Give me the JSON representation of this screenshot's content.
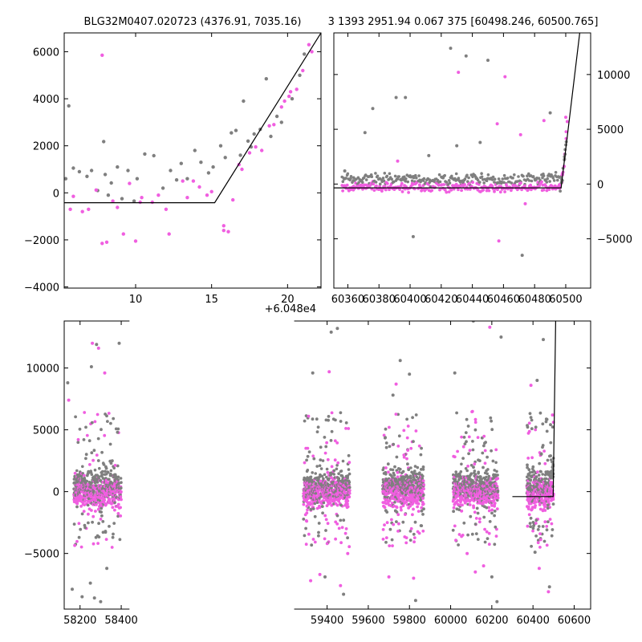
{
  "figure": {
    "title_left": "BLG32M0407.020723 (4376.91, 7035.16)",
    "title_right": "3 1393 2951.94 0.067 375 [60498.246, 60500.765]",
    "offset_label": "+6.048e4"
  },
  "colors": {
    "series_a": "#7f7f7f",
    "series_b": "#f05ee0",
    "model": "#000000"
  },
  "chart_data": [
    {
      "id": "zoom",
      "type": "scatter",
      "title": "",
      "x_offset": 60480,
      "xlim": [
        5.3,
        22.2
      ],
      "ylim": [
        -4050,
        6800
      ],
      "xticks": [
        10,
        15,
        20
      ],
      "yticks": [
        -4000,
        -2000,
        0,
        2000,
        4000,
        6000
      ],
      "ytick_side": "left",
      "model_line": [
        [
          5.3,
          -420
        ],
        [
          15.2,
          -420
        ],
        [
          22.2,
          6800
        ]
      ],
      "series": [
        {
          "color": "#7f7f7f",
          "points": [
            [
              5.4,
              600
            ],
            [
              5.6,
              3700
            ],
            [
              5.9,
              1050
            ],
            [
              6.3,
              900
            ],
            [
              6.8,
              700
            ],
            [
              7.1,
              950
            ],
            [
              7.5,
              100
            ],
            [
              7.9,
              2180
            ],
            [
              8.0,
              780
            ],
            [
              8.4,
              420
            ],
            [
              8.8,
              1100
            ],
            [
              9.1,
              -250
            ],
            [
              9.5,
              950
            ],
            [
              10.1,
              600
            ],
            [
              10.6,
              1650
            ],
            [
              11.2,
              1580
            ],
            [
              11.8,
              200
            ],
            [
              12.3,
              950
            ],
            [
              13.0,
              1250
            ],
            [
              13.4,
              600
            ],
            [
              13.9,
              1800
            ],
            [
              14.3,
              1300
            ],
            [
              14.8,
              850
            ],
            [
              15.1,
              1100
            ],
            [
              15.6,
              2000
            ],
            [
              15.9,
              1500
            ],
            [
              16.3,
              2550
            ],
            [
              16.6,
              2650
            ],
            [
              16.9,
              1600
            ],
            [
              17.1,
              3900
            ],
            [
              17.4,
              2200
            ],
            [
              17.6,
              1950
            ],
            [
              17.8,
              2500
            ],
            [
              18.2,
              2700
            ],
            [
              18.6,
              4850
            ],
            [
              18.9,
              2400
            ],
            [
              19.3,
              3250
            ],
            [
              19.6,
              3000
            ],
            [
              20.3,
              4000
            ],
            [
              20.8,
              5000
            ],
            [
              21.1,
              5900
            ],
            [
              9.9,
              -350
            ],
            [
              12.7,
              550
            ],
            [
              8.2,
              -100
            ]
          ]
        },
        {
          "color": "#f05ee0",
          "points": [
            [
              5.7,
              -700
            ],
            [
              5.9,
              -150
            ],
            [
              6.5,
              -800
            ],
            [
              6.9,
              -700
            ],
            [
              7.4,
              120
            ],
            [
              7.8,
              5850
            ],
            [
              7.8,
              -2150
            ],
            [
              8.1,
              -2100
            ],
            [
              8.5,
              -350
            ],
            [
              8.8,
              -620
            ],
            [
              9.2,
              -1750
            ],
            [
              9.6,
              400
            ],
            [
              10.0,
              -2050
            ],
            [
              10.4,
              -200
            ],
            [
              11.1,
              -400
            ],
            [
              11.5,
              -100
            ],
            [
              12.0,
              -700
            ],
            [
              12.2,
              -1750
            ],
            [
              13.1,
              500
            ],
            [
              13.8,
              500
            ],
            [
              14.2,
              250
            ],
            [
              14.7,
              -100
            ],
            [
              15.0,
              50
            ],
            [
              15.8,
              -1400
            ],
            [
              15.8,
              -1600
            ],
            [
              16.1,
              -1650
            ],
            [
              16.4,
              -300
            ],
            [
              16.8,
              1200
            ],
            [
              17.0,
              1000
            ],
            [
              17.5,
              1700
            ],
            [
              17.9,
              1950
            ],
            [
              18.3,
              1800
            ],
            [
              18.8,
              2850
            ],
            [
              19.1,
              2900
            ],
            [
              19.6,
              3650
            ],
            [
              20.1,
              4100
            ],
            [
              20.6,
              4400
            ],
            [
              21.0,
              5200
            ],
            [
              21.4,
              6300
            ],
            [
              21.6,
              6000
            ],
            [
              20.2,
              4300
            ],
            [
              19.8,
              3900
            ],
            [
              10.3,
              -400
            ],
            [
              13.4,
              -200
            ]
          ]
        }
      ]
    },
    {
      "id": "season",
      "type": "scatter",
      "title": "",
      "xlim": [
        60351,
        60516
      ],
      "ylim": [
        -9500,
        13800
      ],
      "xticks": [
        60360,
        60380,
        60400,
        60420,
        60440,
        60460,
        60480,
        60500
      ],
      "yticks": [
        -5000,
        0,
        5000,
        10000
      ],
      "ytick_side": "right",
      "model_line": [
        [
          60351,
          -350
        ],
        [
          60497,
          -350
        ],
        [
          60509,
          13800
        ]
      ],
      "outliers": {
        "#7f7f7f": [
          [
            60358,
            1200
          ],
          [
            60371,
            4700
          ],
          [
            60376,
            6900
          ],
          [
            60391,
            7900
          ],
          [
            60397,
            7900
          ],
          [
            60402,
            -4800
          ],
          [
            60426,
            12400
          ],
          [
            60436,
            11700
          ],
          [
            60450,
            11300
          ],
          [
            60472,
            -6500
          ],
          [
            60490,
            6500
          ],
          [
            60430,
            3500
          ],
          [
            60412,
            2600
          ],
          [
            60445,
            3800
          ]
        ],
        "#f05ee0": [
          [
            60431,
            10200
          ],
          [
            60461,
            9800
          ],
          [
            60457,
            -5200
          ],
          [
            60486,
            5800
          ],
          [
            60471,
            4500
          ],
          [
            60500,
            6100
          ],
          [
            60501,
            5700
          ],
          [
            60456,
            5500
          ],
          [
            60392,
            2100
          ],
          [
            60474,
            -1800
          ]
        ]
      }
    },
    {
      "id": "full",
      "type": "scatter",
      "title": "",
      "xlim": [
        58123,
        60680
      ],
      "ylim": [
        -9500,
        13800
      ],
      "xticks": [
        58200,
        58400,
        59400,
        59600,
        59800,
        60000,
        60200,
        60400,
        60600
      ],
      "yticks": [
        -5000,
        0,
        5000,
        10000
      ],
      "ytick_side": "left",
      "x_break": [
        58440,
        59240
      ],
      "model_line": [
        [
          60300,
          -400
        ],
        [
          60498,
          -400
        ],
        [
          60510,
          13800
        ]
      ],
      "seasons": [
        [
          58170,
          58400
        ],
        [
          59285,
          59510
        ],
        [
          59670,
          59870
        ],
        [
          60012,
          60230
        ],
        [
          60370,
          60500
        ]
      ],
      "outliers": {
        "#7f7f7f": [
          [
            58140,
            8800
          ],
          [
            58162,
            -7900
          ],
          [
            58210,
            -8500
          ],
          [
            58250,
            -7400
          ],
          [
            58270,
            -8600
          ],
          [
            58300,
            -8900
          ],
          [
            58330,
            -6200
          ],
          [
            58390,
            12000
          ],
          [
            58255,
            10100
          ],
          [
            58280,
            11900
          ],
          [
            59330,
            9600
          ],
          [
            59420,
            12900
          ],
          [
            59450,
            13200
          ],
          [
            59480,
            -8300
          ],
          [
            59390,
            -6900
          ],
          [
            59800,
            9500
          ],
          [
            59720,
            7800
          ],
          [
            59755,
            10600
          ],
          [
            59830,
            -8800
          ],
          [
            60020,
            9600
          ],
          [
            60110,
            13800
          ],
          [
            60200,
            -6900
          ],
          [
            60225,
            -8900
          ],
          [
            60245,
            12500
          ],
          [
            60410,
            -4900
          ],
          [
            60450,
            12300
          ],
          [
            60420,
            9000
          ],
          [
            60480,
            -7700
          ]
        ],
        "#f05ee0": [
          [
            58145,
            7400
          ],
          [
            58290,
            11600
          ],
          [
            58320,
            9600
          ],
          [
            58260,
            12000
          ],
          [
            59320,
            -7200
          ],
          [
            59365,
            -6700
          ],
          [
            59410,
            9700
          ],
          [
            59465,
            -7600
          ],
          [
            59500,
            -5000
          ],
          [
            59700,
            -6900
          ],
          [
            59820,
            -7000
          ],
          [
            59735,
            8700
          ],
          [
            60080,
            -5000
          ],
          [
            60120,
            -6500
          ],
          [
            60160,
            -6000
          ],
          [
            60190,
            13300
          ],
          [
            60390,
            8600
          ],
          [
            60430,
            -6200
          ],
          [
            60455,
            13900
          ],
          [
            60475,
            -8100
          ],
          [
            60495,
            6200
          ]
        ]
      }
    }
  ]
}
